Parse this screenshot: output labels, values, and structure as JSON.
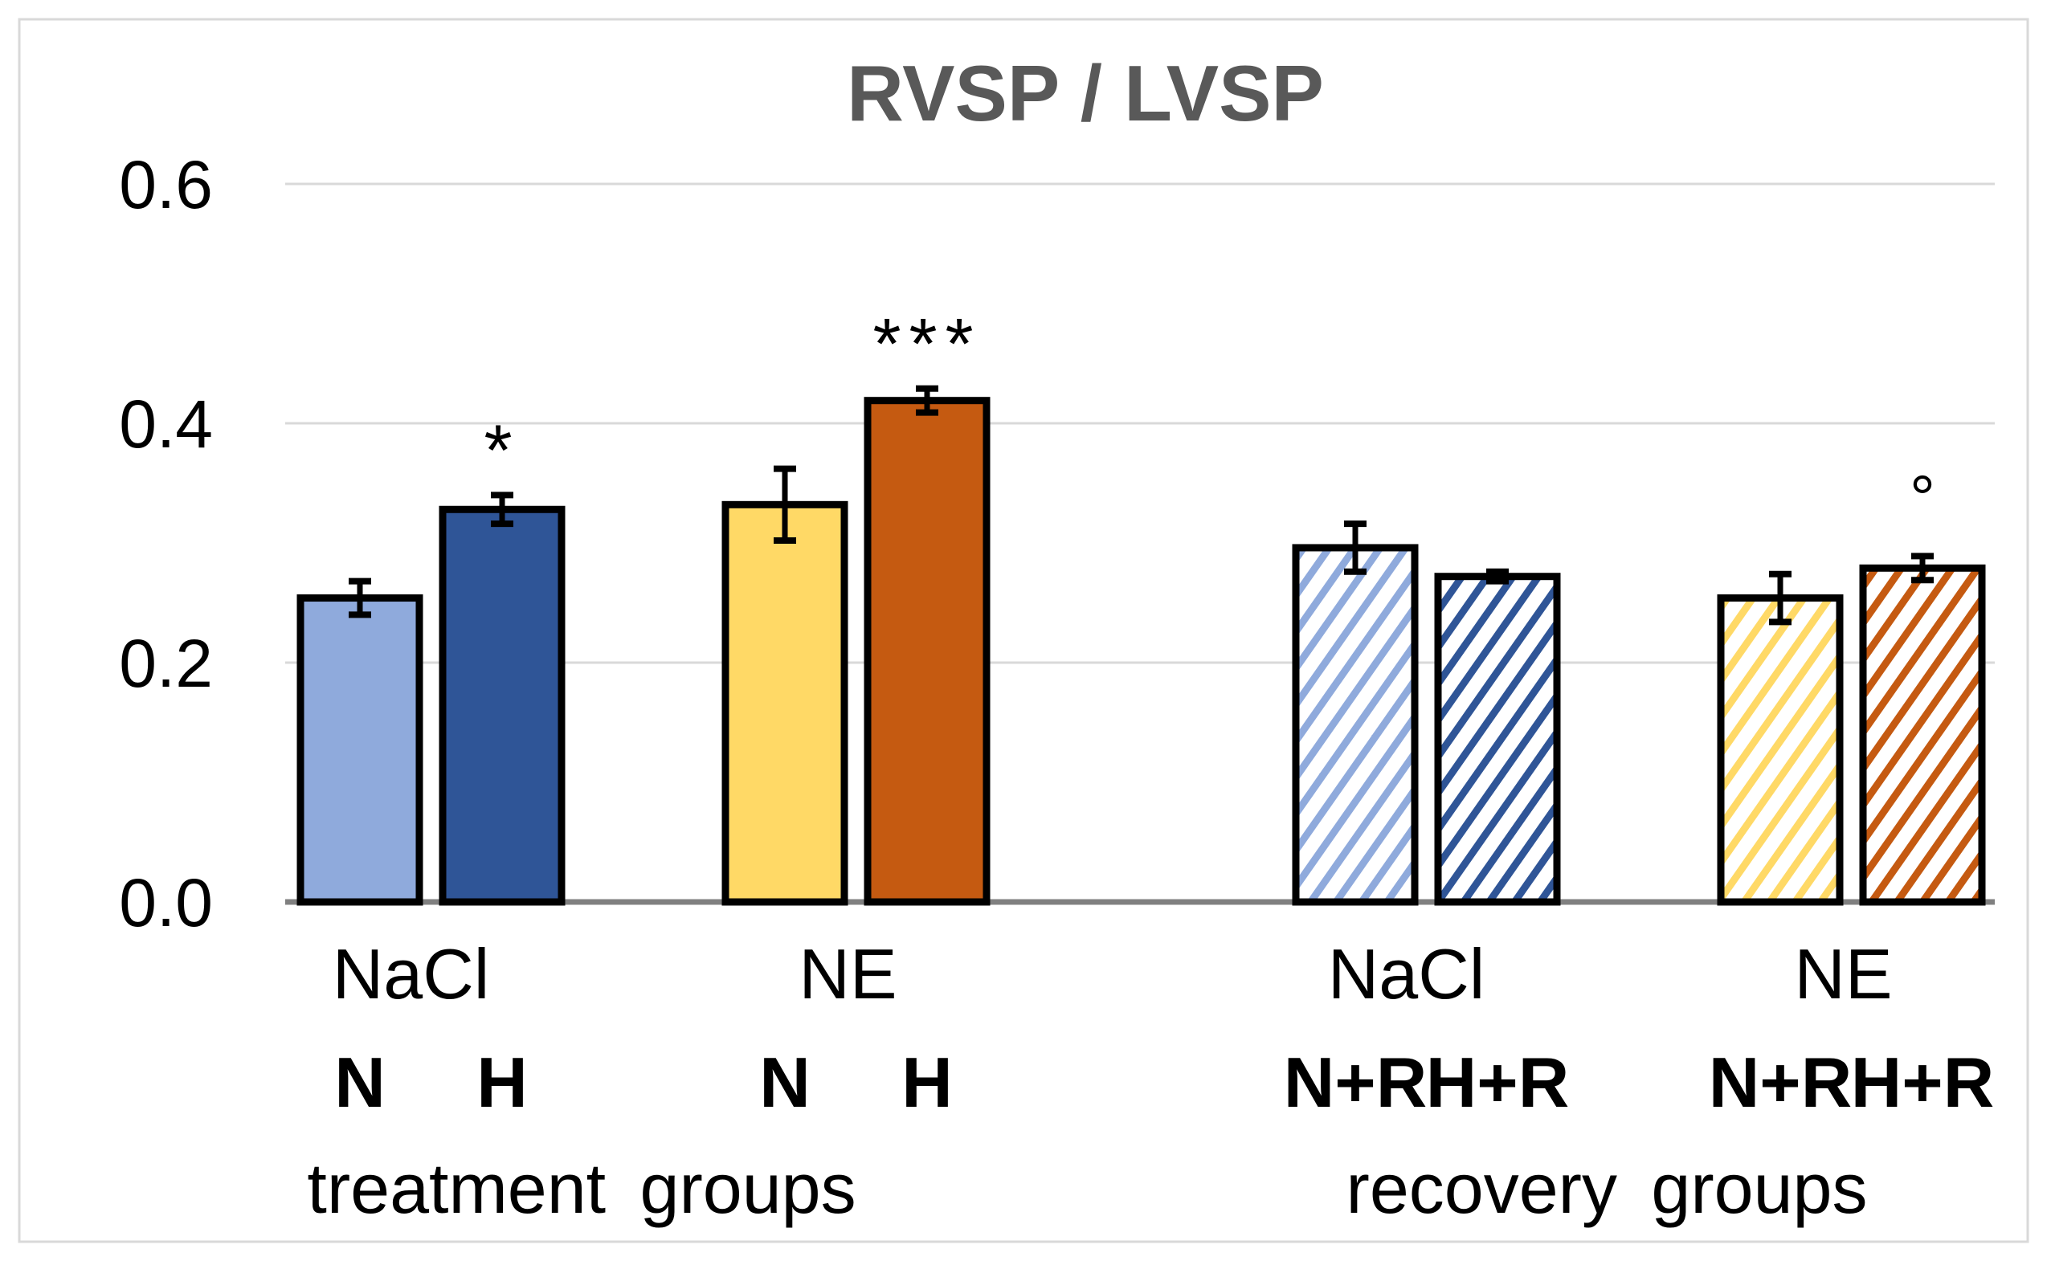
{
  "chart_data": {
    "type": "bar",
    "title": "RVSP / LVSP",
    "xlabel": "",
    "ylabel": "",
    "ylim": [
      0,
      0.6
    ],
    "yticks": [
      "0.0",
      "0.2",
      "0.4",
      "0.6"
    ],
    "ytick_values": [
      0,
      0.2,
      0.4,
      0.6
    ],
    "grid": true,
    "sections": [
      {
        "label": "treatment groups",
        "groups": [
          {
            "label": "NaCl",
            "bars": [
              0,
              1
            ]
          },
          {
            "label": "NE",
            "bars": [
              2,
              3
            ]
          }
        ]
      },
      {
        "label": "recovery groups",
        "groups": [
          {
            "label": "NaCl",
            "bars": [
              4,
              5
            ]
          },
          {
            "label": "NE",
            "bars": [
              6,
              7
            ]
          }
        ]
      }
    ],
    "bars": [
      {
        "label": "N",
        "value": 0.254,
        "error": 0.014,
        "color": "#8FAADC",
        "hatched": false,
        "annotation": ""
      },
      {
        "label": "H",
        "value": 0.328,
        "error": 0.012,
        "color": "#2F5597",
        "hatched": false,
        "annotation": "*"
      },
      {
        "label": "N",
        "value": 0.332,
        "error": 0.03,
        "color": "#FFD966",
        "hatched": false,
        "annotation": ""
      },
      {
        "label": "H",
        "value": 0.419,
        "error": 0.01,
        "color": "#C55A11",
        "hatched": false,
        "annotation": "***"
      },
      {
        "label": "N+R",
        "value": 0.296,
        "error": 0.02,
        "color": "#8FAADC",
        "hatched": true,
        "annotation": ""
      },
      {
        "label": "H+R",
        "value": 0.272,
        "error": 0.004,
        "color": "#2F5597",
        "hatched": true,
        "annotation": ""
      },
      {
        "label": "N+R",
        "value": 0.254,
        "error": 0.02,
        "color": "#FFD966",
        "hatched": true,
        "annotation": ""
      },
      {
        "label": "H+R",
        "value": 0.279,
        "error": 0.01,
        "color": "#C55A11",
        "hatched": true,
        "annotation": "°"
      }
    ]
  }
}
